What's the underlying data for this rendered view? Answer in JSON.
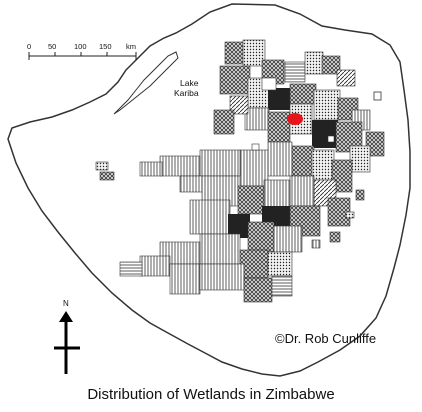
{
  "map": {
    "scale_ticks": [
      "0",
      "50",
      "100",
      "150",
      "km"
    ],
    "lake_label_line1": "Lake",
    "lake_label_line2": "Kariba",
    "north_label": "N",
    "marker_color": "#e8141c",
    "border_color": "#333333"
  },
  "credit": "©Dr. Rob Cunliffe",
  "caption": "Distribution of Wetlands in Zimbabwe"
}
